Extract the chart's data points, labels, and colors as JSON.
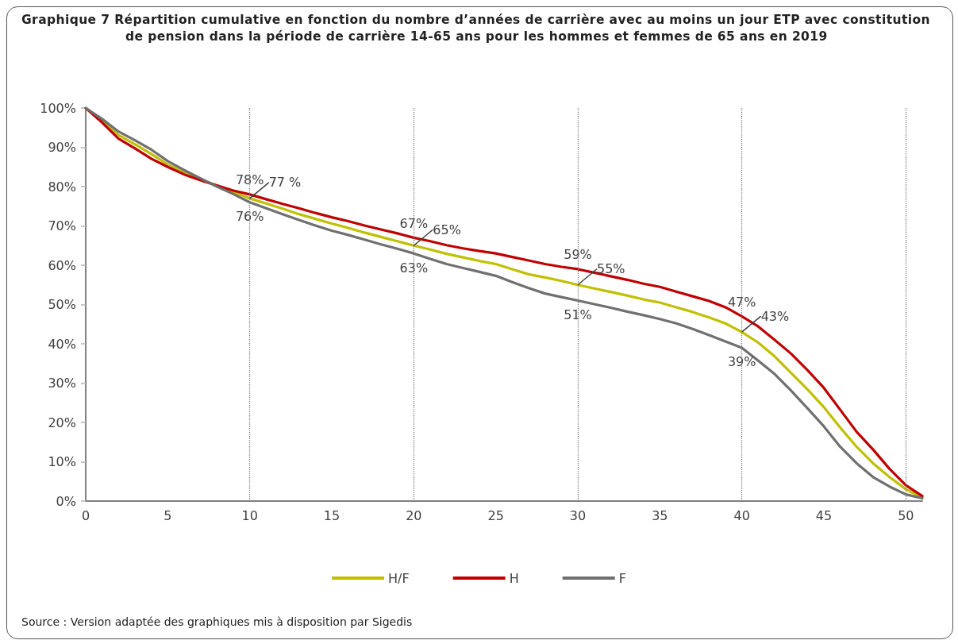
{
  "chart_data": {
    "type": "line",
    "title": "Graphique 7 Répartition cumulative en fonction du nombre d’années de carrière avec au moins un jour ETP avec constitution de pension dans la période de carrière 14-65 ans pour les hommes et femmes de 65 ans en 2019",
    "annotations": [
      "Source : Version adaptée des graphiques mis à disposition par Sigedis"
    ],
    "x": [
      0,
      1,
      2,
      3,
      4,
      5,
      6,
      7,
      8,
      9,
      10,
      11,
      12,
      13,
      14,
      15,
      16,
      17,
      18,
      19,
      20,
      21,
      22,
      23,
      24,
      25,
      26,
      27,
      28,
      29,
      30,
      31,
      32,
      33,
      34,
      35,
      36,
      37,
      38,
      39,
      40,
      41,
      42,
      43,
      44,
      45,
      46,
      47,
      48,
      49,
      50,
      51
    ],
    "xlim": [
      0,
      51
    ],
    "xticks": [
      0,
      5,
      10,
      15,
      20,
      25,
      30,
      35,
      40,
      45,
      50
    ],
    "ylim": [
      0,
      100
    ],
    "yticks": [
      {
        "value": 0,
        "label": "0%"
      },
      {
        "value": 10,
        "label": "10%"
      },
      {
        "value": 20,
        "label": "20%"
      },
      {
        "value": 30,
        "label": "30%"
      },
      {
        "value": 40,
        "label": "40%"
      },
      {
        "value": 50,
        "label": "50%"
      },
      {
        "value": 60,
        "label": "60%"
      },
      {
        "value": 70,
        "label": "70%"
      },
      {
        "value": 80,
        "label": "80%"
      },
      {
        "value": 90,
        "label": "90%"
      },
      {
        "value": 100,
        "label": "100%"
      }
    ],
    "series": [
      {
        "name": "H/F",
        "color": "#c0c000",
        "values": [
          100,
          96.8,
          93.1,
          90.8,
          88.3,
          85.6,
          83.7,
          81.9,
          80.2,
          78.6,
          77,
          75.7,
          74.4,
          73.0,
          71.8,
          70.6,
          69.5,
          68.3,
          67.2,
          66.1,
          65,
          64,
          62.9,
          62,
          61.1,
          60.3,
          59,
          57.7,
          56.9,
          56,
          55,
          54.1,
          53.2,
          52.3,
          51.3,
          50.5,
          49.3,
          48.1,
          46.7,
          45.2,
          43,
          40.3,
          36.8,
          32.6,
          28.4,
          23.9,
          18.7,
          13.8,
          9.6,
          6.1,
          3.0,
          0.9
        ],
        "value_labels": [
          null,
          null,
          null,
          null,
          null,
          null,
          null,
          null,
          null,
          null,
          "77 %",
          null,
          null,
          null,
          null,
          null,
          null,
          null,
          null,
          null,
          "65%",
          null,
          null,
          null,
          null,
          null,
          null,
          null,
          null,
          null,
          "55%",
          null,
          null,
          null,
          null,
          null,
          null,
          null,
          null,
          null,
          "43%",
          null,
          null,
          null,
          null,
          null,
          null,
          null,
          null,
          null,
          null,
          null
        ]
      },
      {
        "name": "H",
        "color": "#c00000",
        "values": [
          100,
          96.3,
          92.2,
          89.7,
          87.1,
          85.0,
          83.1,
          81.6,
          80.3,
          79.0,
          78,
          76.8,
          75.6,
          74.5,
          73.3,
          72.2,
          71.2,
          70.1,
          69.1,
          68.1,
          67,
          66.1,
          65.1,
          64.3,
          63.6,
          63.0,
          62.1,
          61.2,
          60.3,
          59.6,
          59,
          58.1,
          57.2,
          56.3,
          55.3,
          54.5,
          53.3,
          52.1,
          50.9,
          49.3,
          47,
          44.4,
          41.0,
          37.5,
          33.3,
          28.8,
          23.2,
          17.6,
          13.1,
          8.2,
          4.0,
          1.3
        ],
        "value_labels": [
          null,
          null,
          null,
          null,
          null,
          null,
          null,
          null,
          null,
          null,
          "78%",
          null,
          null,
          null,
          null,
          null,
          null,
          null,
          null,
          null,
          "67%",
          null,
          null,
          null,
          null,
          null,
          null,
          null,
          null,
          null,
          "59%",
          null,
          null,
          null,
          null,
          null,
          null,
          null,
          null,
          null,
          "47%",
          null,
          null,
          null,
          null,
          null,
          null,
          null,
          null,
          null,
          null,
          null
        ]
      },
      {
        "name": "F",
        "color": "#707070",
        "values": [
          100,
          97.2,
          94.0,
          91.8,
          89.4,
          86.5,
          84.2,
          82.1,
          80.0,
          78.1,
          76,
          74.5,
          73.0,
          71.5,
          70.1,
          68.8,
          67.7,
          66.5,
          65.3,
          64.2,
          63,
          61.6,
          60.3,
          59.3,
          58.3,
          57.3,
          55.7,
          54.2,
          52.8,
          51.9,
          51,
          50.1,
          49.2,
          48.2,
          47.3,
          46.3,
          45.2,
          43.8,
          42.2,
          40.6,
          39,
          35.7,
          32.3,
          28.1,
          23.6,
          19.0,
          13.8,
          9.6,
          6.1,
          3.7,
          1.7,
          0.7
        ],
        "value_labels": [
          null,
          null,
          null,
          null,
          null,
          null,
          null,
          null,
          null,
          null,
          "76%",
          null,
          null,
          null,
          null,
          null,
          null,
          null,
          null,
          null,
          "63%",
          null,
          null,
          null,
          null,
          null,
          null,
          null,
          null,
          null,
          "51%",
          null,
          null,
          null,
          null,
          null,
          null,
          null,
          null,
          null,
          "39%",
          null,
          null,
          null,
          null,
          null,
          null,
          null,
          null,
          null,
          null,
          null
        ]
      }
    ],
    "ref_lines": [
      {
        "axis": "x",
        "value": 10,
        "color": "#808080",
        "line_style": "dotted"
      },
      {
        "axis": "x",
        "value": 20,
        "color": "#808080",
        "line_style": "dotted"
      },
      {
        "axis": "x",
        "value": 30,
        "color": "#808080",
        "line_style": "dotted"
      },
      {
        "axis": "x",
        "value": 40,
        "color": "#808080",
        "line_style": "dotted"
      },
      {
        "axis": "x",
        "value": 50,
        "color": "#808080",
        "line_style": "dotted"
      }
    ],
    "legend": "bottom",
    "marker": "none",
    "line_style": "solid"
  }
}
